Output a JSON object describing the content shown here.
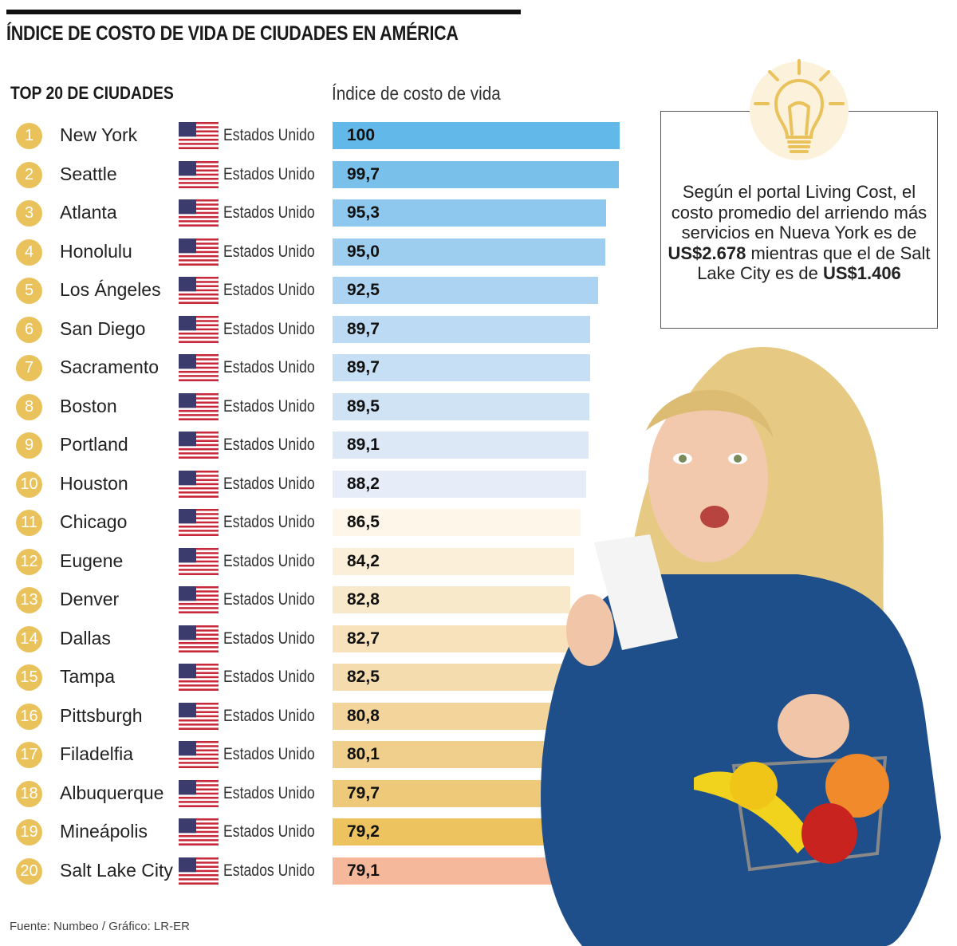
{
  "title": "ÍNDICE DE COSTO DE VIDA DE CIUDADES EN AMÉRICA",
  "subtitle": "TOP 20 DE CIUDADES",
  "source": "Fuente: Numbeo / Gráfico: LR-ER",
  "info": {
    "icon": "lightbulb-icon",
    "text_pre": "Según el portal Living Cost, el costo promedio del arriendo más servicios en Nueva York es de ",
    "amount_ny": "US$2.678",
    "text_mid": " mientras que el de Salt Lake City es de ",
    "amount_slc": "US$1.406"
  },
  "colors": {
    "rank_badge": "#e9c25b",
    "highlight_last": "#f5b89a"
  },
  "chart_data": {
    "type": "bar",
    "orientation": "horizontal",
    "title": "ÍNDICE DE COSTO DE VIDA DE CIUDADES EN AMÉRICA",
    "xlabel": "Índice de costo de vida",
    "xlim": [
      0,
      100
    ],
    "grid": false,
    "ranks": [
      "1",
      "2",
      "3",
      "4",
      "5",
      "6",
      "7",
      "8",
      "9",
      "10",
      "11",
      "12",
      "13",
      "14",
      "15",
      "16",
      "17",
      "18",
      "19",
      "20"
    ],
    "categories": [
      "New York",
      "Seattle",
      "Atlanta",
      "Honolulu",
      "Los Ángeles",
      "San Diego",
      "Sacramento",
      "Boston",
      "Portland",
      "Houston",
      "Chicago",
      "Eugene",
      "Denver",
      "Dallas",
      "Tampa",
      "Pittsburgh",
      "Filadelfia",
      "Albuquerque",
      "Mineápolis",
      "Salt Lake City"
    ],
    "countries": [
      "Estados Unidos",
      "Estados Unidos",
      "Estados Unidos",
      "Estados Unidos",
      "Estados Unidos",
      "Estados Unidos",
      "Estados Unidos",
      "Estados Unidos",
      "Estados Unidos",
      "Estados Unidos",
      "Estados Unidos",
      "Estados Unidos",
      "Estados Unidos",
      "Estados Unidos",
      "Estados UnidosEsta",
      "Estados Unidos",
      "Estados Unidos",
      "Estados Unidos",
      "Estados Unidos",
      "Estados Unidos"
    ],
    "values": [
      100,
      99.7,
      95.3,
      95.0,
      92.5,
      89.7,
      89.7,
      89.5,
      89.1,
      88.2,
      86.5,
      84.2,
      82.8,
      82.7,
      82.5,
      80.8,
      80.1,
      79.7,
      79.2,
      79.1
    ],
    "labels": [
      "100",
      "99,7",
      "95,3",
      "95,0",
      "92,5",
      "89,7",
      "89,7",
      "89,5",
      "89,1",
      "88,2",
      "86,5",
      "84,2",
      "82,8",
      "82,7",
      "82,5",
      "80,8",
      "80,1",
      "79,7",
      "79,2",
      "79,1"
    ],
    "bar_colors": [
      "#62b8e8",
      "#79c0eb",
      "#8ec8ee",
      "#9dcdef",
      "#acd3f1",
      "#bcdaf3",
      "#c6dff4",
      "#cfe3f5",
      "#dce8f6",
      "#e6edf8",
      "#fdf6e9",
      "#fbefd9",
      "#f9e9cb",
      "#f7e2bb",
      "#f5dcae",
      "#f3d59c",
      "#f0cf8c",
      "#eec97a",
      "#ecc35e",
      "#f5b89a"
    ]
  }
}
